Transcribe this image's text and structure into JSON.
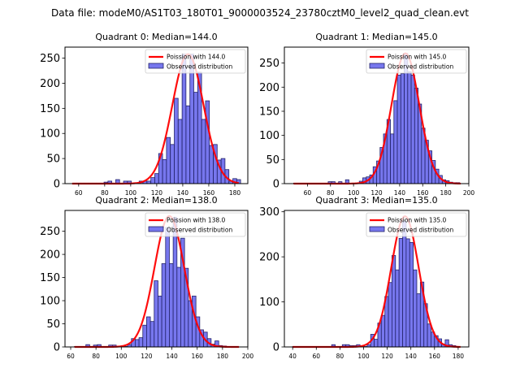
{
  "figure": {
    "suptitle": "Data file: modeM0/AS1T03_180T01_9000003524_23780cztM0_level2_quad_clean.evt"
  },
  "colors": {
    "bar_fill": "#7777ee",
    "bar_edge": "#23236a",
    "poisson_line": "#ff0000",
    "axis": "#000000"
  },
  "chart_data": [
    {
      "type": "bar",
      "title": "Quadrant 0: Median=144.0",
      "median": 144.0,
      "xlim": [
        49.5,
        190
      ],
      "ylim": [
        0,
        272
      ],
      "xticks": [
        60,
        80,
        100,
        120,
        140,
        160,
        180
      ],
      "yticks": [
        0,
        50,
        100,
        150,
        200,
        250
      ],
      "legend": [
        "Poission with 144.0",
        "Observed distribution"
      ],
      "legend_position": "top-right",
      "bin_width": 2.95,
      "bins_start": [
        55.5,
        58.5,
        61.5,
        64.5,
        67.5,
        70.5,
        73.5,
        76.5,
        79.5,
        82.5,
        85.5,
        88.5,
        91.5,
        94.5,
        97.5,
        100.5,
        103.5,
        106.5,
        109.5,
        112.5,
        115.5,
        118.5,
        121.5,
        124.5,
        127.5,
        130.5,
        133.5,
        136.5,
        139.5,
        142.5,
        145.5,
        148.5,
        151.5,
        154.5,
        157.5,
        160.5,
        163.5,
        166.5,
        169.5,
        172.5,
        175.5,
        178.5,
        181.5
      ],
      "values": [
        1,
        1,
        1,
        1,
        1,
        1,
        1,
        1,
        3,
        5,
        1,
        8,
        1,
        5,
        5,
        1,
        1,
        5,
        5,
        5,
        12,
        20,
        60,
        48,
        92,
        78,
        170,
        128,
        258,
        155,
        258,
        182,
        222,
        128,
        165,
        76,
        78,
        47,
        50,
        28,
        5,
        10,
        8
      ],
      "poisson_lambda": 144.0,
      "poisson_peak": 258,
      "poisson_x_range": [
        55,
        183
      ]
    },
    {
      "type": "bar",
      "title": "Quadrant 1: Median=145.0",
      "median": 145.0,
      "xlim": [
        40,
        200
      ],
      "ylim": [
        0,
        283
      ],
      "xticks": [
        60,
        80,
        100,
        120,
        140,
        160,
        180,
        200
      ],
      "yticks": [
        0,
        50,
        100,
        150,
        200,
        250
      ],
      "legend": [
        "Poission with 145.0",
        "Observed distribution"
      ],
      "legend_position": "top-right",
      "bin_width": 3.0,
      "bins_start": [
        48,
        51,
        54,
        57,
        60,
        63,
        66,
        69,
        72,
        75,
        78,
        81,
        84,
        87,
        90,
        93,
        96,
        99,
        102,
        105,
        108,
        111,
        114,
        117,
        120,
        123,
        126,
        129,
        132,
        135,
        138,
        141,
        144,
        147,
        150,
        153,
        156,
        159,
        162,
        165,
        168,
        171,
        174,
        177,
        180,
        183,
        186,
        189
      ],
      "values": [
        1,
        1,
        1,
        1,
        1,
        1,
        1,
        1,
        1,
        1,
        4,
        4,
        1,
        4,
        1,
        8,
        1,
        1,
        1,
        5,
        12,
        14,
        18,
        35,
        47,
        75,
        103,
        133,
        103,
        172,
        225,
        228,
        270,
        232,
        225,
        198,
        165,
        115,
        90,
        68,
        48,
        30,
        17,
        8,
        6,
        3,
        2,
        2
      ],
      "poisson_lambda": 145.0,
      "poisson_peak": 270,
      "poisson_x_range": [
        48,
        193
      ]
    },
    {
      "type": "bar",
      "title": "Quadrant 2: Median=138.0",
      "median": 138.0,
      "xlim": [
        55.5,
        200
      ],
      "ylim": [
        0,
        295
      ],
      "xticks": [
        60,
        80,
        100,
        120,
        140,
        160,
        180,
        200
      ],
      "yticks": [
        0,
        50,
        100,
        150,
        200,
        250
      ],
      "legend": [
        "Poission with 138.0",
        "Observed distribution"
      ],
      "legend_position": "top-right",
      "bin_width": 3.0,
      "bins_start": [
        63,
        66,
        69,
        72,
        75,
        78,
        81,
        84,
        87,
        90,
        93,
        96,
        99,
        102,
        105,
        108,
        111,
        114,
        117,
        120,
        123,
        126,
        129,
        132,
        135,
        138,
        141,
        144,
        147,
        150,
        153,
        156,
        159,
        162,
        165,
        168,
        171,
        174,
        177,
        180,
        183,
        186,
        189
      ],
      "values": [
        1,
        1,
        1,
        5,
        1,
        4,
        5,
        1,
        1,
        4,
        4,
        1,
        1,
        1,
        5,
        18,
        16,
        20,
        47,
        65,
        55,
        143,
        110,
        180,
        258,
        180,
        280,
        172,
        235,
        170,
        100,
        110,
        65,
        37,
        32,
        18,
        6,
        13,
        3,
        2,
        1,
        1,
        1
      ],
      "poisson_lambda": 138.0,
      "poisson_peak": 283,
      "poisson_x_range": [
        63,
        193
      ]
    },
    {
      "type": "bar",
      "title": "Quadrant 3: Median=135.0",
      "median": 135.0,
      "xlim": [
        33,
        189
      ],
      "ylim": [
        0,
        303
      ],
      "xticks": [
        40,
        60,
        80,
        100,
        120,
        140,
        160,
        180
      ],
      "yticks": [
        0,
        100,
        200,
        300
      ],
      "legend": [
        "Poission with 135.0",
        "Observed distribution"
      ],
      "legend_position": "top-right",
      "bin_width": 3.0,
      "bins_start": [
        40,
        43,
        46,
        49,
        52,
        55,
        58,
        61,
        64,
        67,
        70,
        73,
        76,
        79,
        82,
        85,
        88,
        91,
        94,
        97,
        100,
        103,
        106,
        109,
        112,
        115,
        118,
        121,
        124,
        127,
        130,
        133,
        136,
        139,
        142,
        145,
        148,
        151,
        154,
        157,
        160,
        163,
        166,
        169,
        172,
        175,
        178
      ],
      "values": [
        1,
        1,
        1,
        1,
        1,
        1,
        1,
        1,
        1,
        1,
        1,
        5,
        1,
        1,
        5,
        5,
        3,
        3,
        5,
        1,
        1,
        5,
        28,
        17,
        53,
        70,
        112,
        143,
        203,
        171,
        241,
        280,
        240,
        232,
        171,
        118,
        144,
        96,
        51,
        33,
        25,
        18,
        6,
        16,
        5,
        3,
        1
      ],
      "poisson_lambda": 135.0,
      "poisson_peak": 290,
      "poisson_x_range": [
        40,
        182
      ]
    }
  ]
}
